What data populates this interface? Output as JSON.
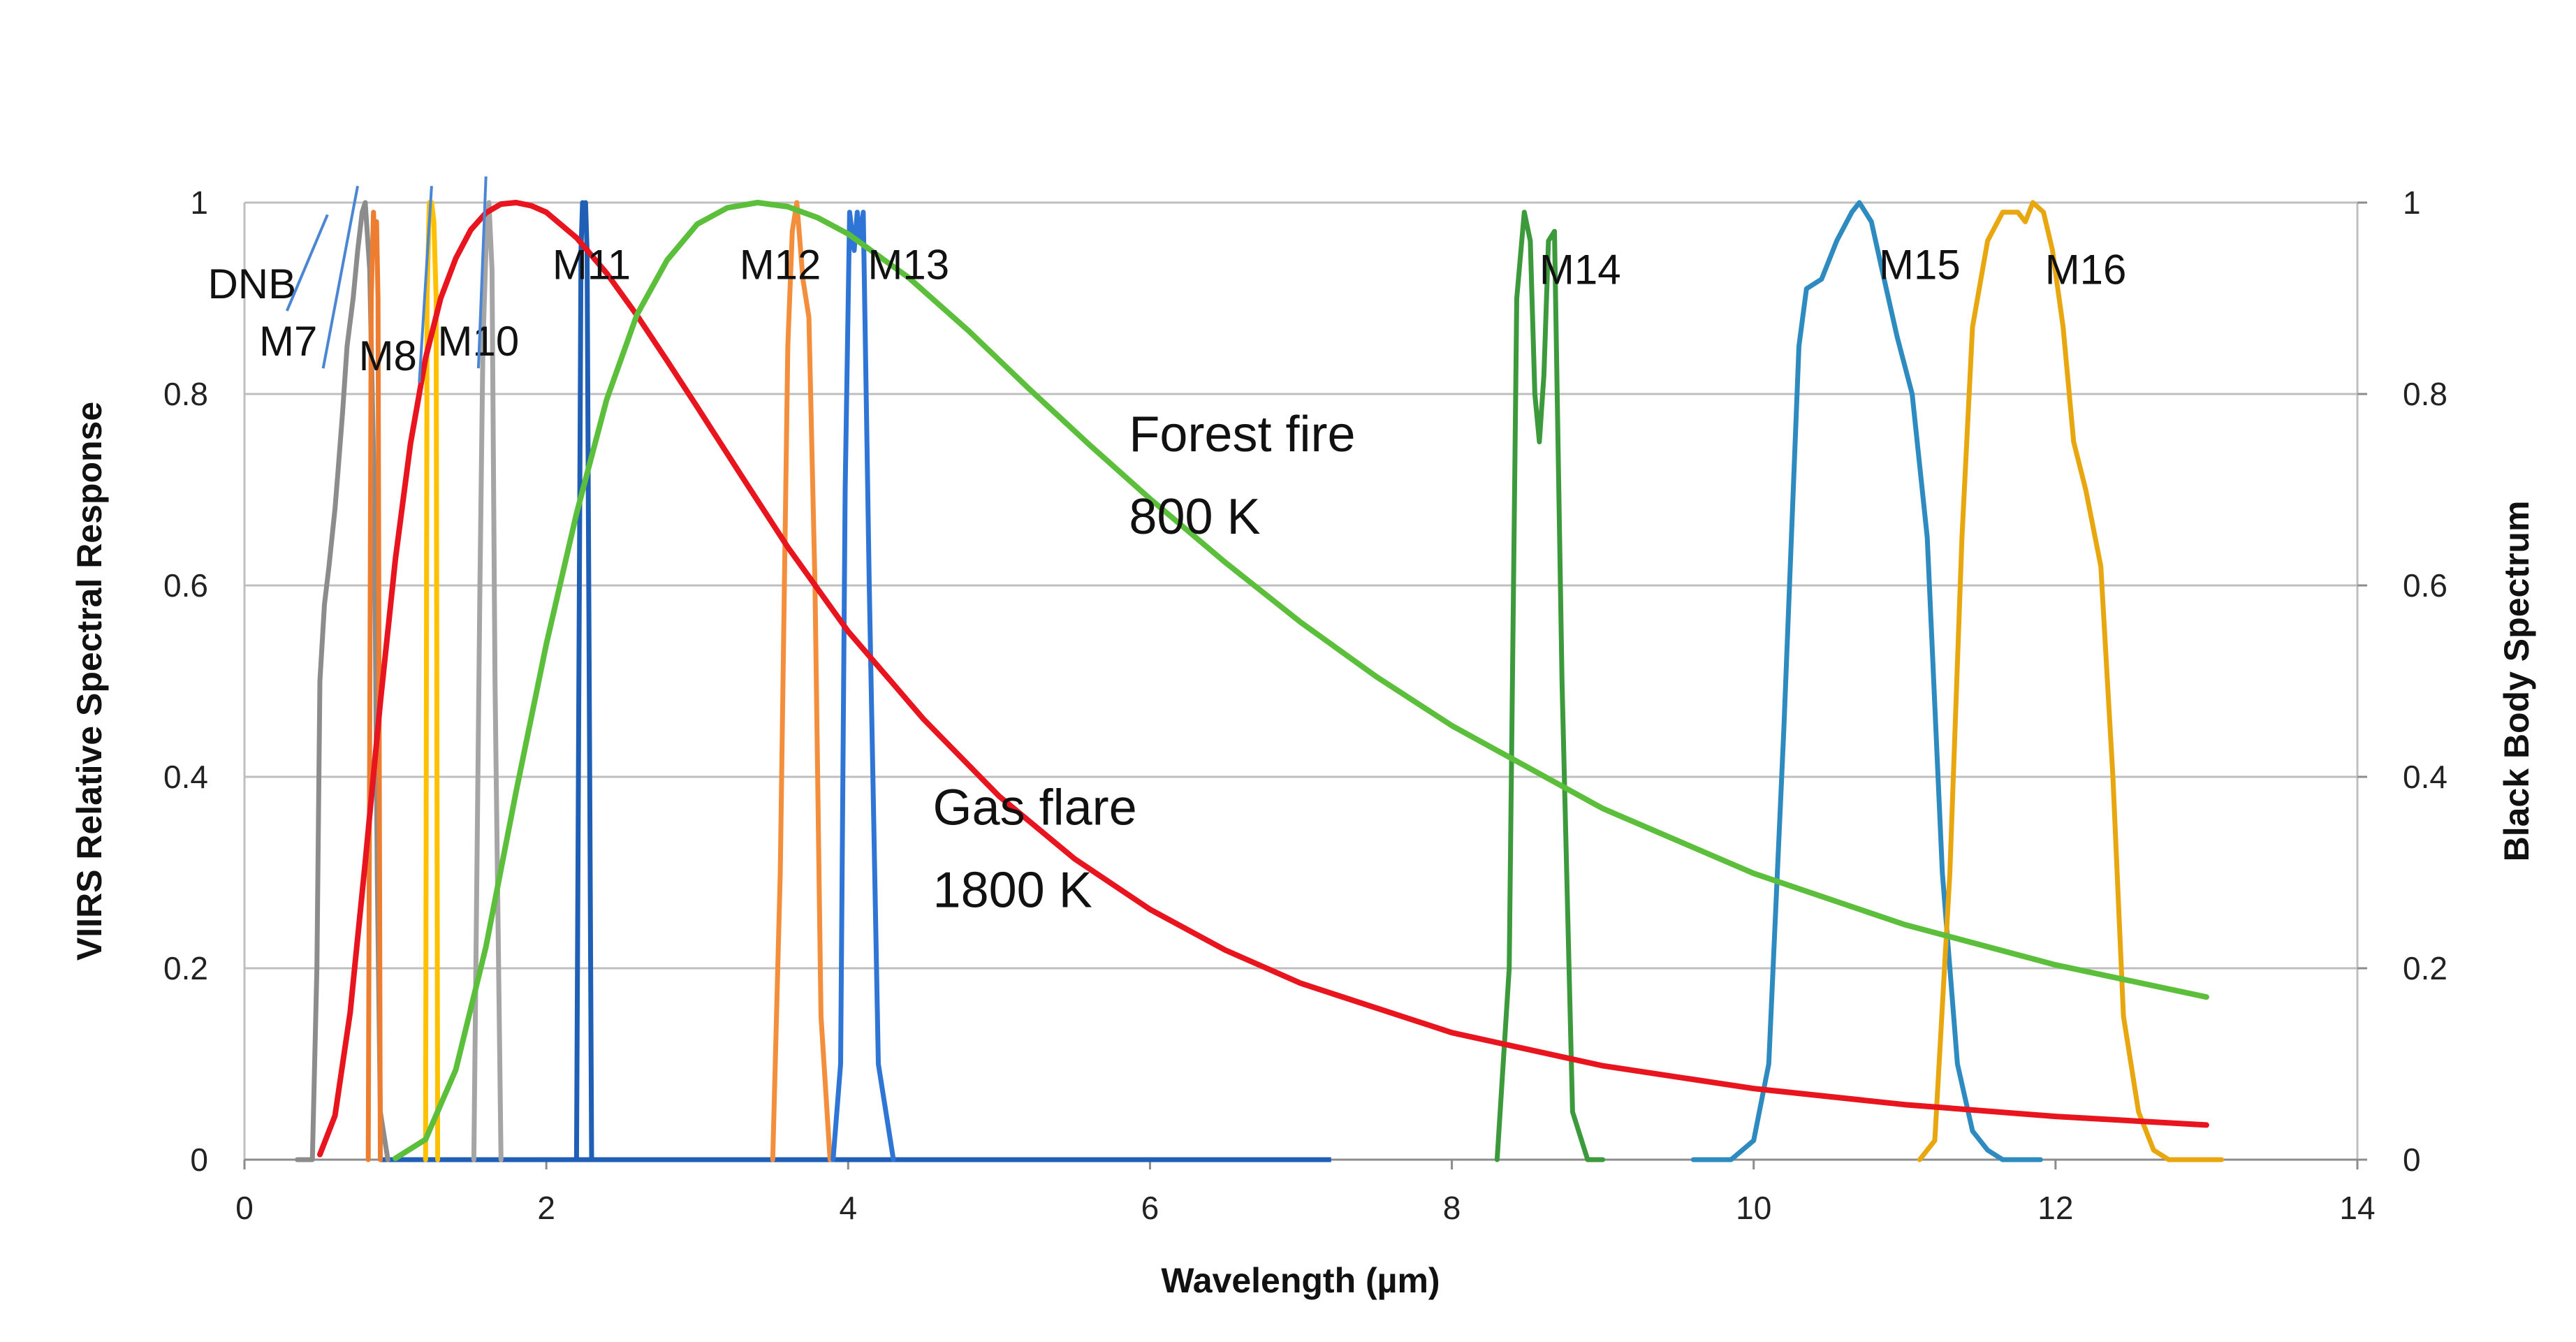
{
  "chart_data": {
    "type": "line",
    "title": "",
    "xlabel": "Wavelength (µm)",
    "ylabel": "VIIRS Relative Spectral Response",
    "y2label": "Black Body Spectrum",
    "xlim": [
      0,
      14
    ],
    "ylim": [
      0,
      1
    ],
    "y2lim": [
      0,
      1
    ],
    "x_ticks": [
      "0",
      "2",
      "4",
      "6",
      "8",
      "10",
      "12",
      "14"
    ],
    "y_ticks": [
      "0",
      "0.2",
      "0.4",
      "0.6",
      "0.8",
      "1"
    ],
    "y2_ticks": [
      "0",
      "0.2",
      "0.4",
      "0.6",
      "0.8",
      "1"
    ],
    "grid": true,
    "series": [
      {
        "name": "DNB",
        "color": "#8c8c8c",
        "x": [
          0.35,
          0.45,
          0.48,
          0.5,
          0.53,
          0.56,
          0.58,
          0.6,
          0.62,
          0.65,
          0.68,
          0.72,
          0.75,
          0.78,
          0.8,
          0.83,
          0.86,
          0.88,
          0.9,
          0.95
        ],
        "y": [
          0,
          0,
          0.2,
          0.5,
          0.58,
          0.62,
          0.65,
          0.68,
          0.72,
          0.78,
          0.85,
          0.9,
          0.95,
          0.99,
          1,
          0.93,
          0.7,
          0.3,
          0.05,
          0
        ]
      },
      {
        "name": "M7",
        "color": "#ed7d31",
        "x": [
          0.82,
          0.84,
          0.855,
          0.865,
          0.875,
          0.885,
          0.9
        ],
        "y": [
          0,
          0.9,
          0.99,
          0.95,
          0.98,
          0.9,
          0
        ]
      },
      {
        "name": "M8",
        "color": "#ffc000",
        "x": [
          1.2,
          1.21,
          1.225,
          1.24,
          1.255,
          1.27,
          1.28
        ],
        "y": [
          0,
          0.9,
          1,
          1,
          0.98,
          0.9,
          0
        ]
      },
      {
        "name": "M10",
        "color": "#a5a5a5",
        "x": [
          1.52,
          1.56,
          1.58,
          1.6,
          1.62,
          1.64,
          1.66,
          1.7
        ],
        "y": [
          0,
          0.6,
          0.85,
          0.95,
          1,
          0.93,
          0.5,
          0
        ]
      },
      {
        "name": "M11",
        "color": "#1f5fb5",
        "x": [
          2.2,
          2.23,
          2.24,
          2.25,
          2.26,
          2.27,
          2.3
        ],
        "y": [
          0,
          0.95,
          1,
          0.98,
          1,
          0.95,
          0
        ]
      },
      {
        "name": "M12",
        "color": "#f28e3c",
        "x": [
          3.5,
          3.55,
          3.6,
          3.63,
          3.66,
          3.7,
          3.74,
          3.78,
          3.82,
          3.88
        ],
        "y": [
          0,
          0.3,
          0.85,
          0.97,
          1,
          0.92,
          0.88,
          0.6,
          0.15,
          0
        ]
      },
      {
        "name": "M13",
        "color": "#2e75d6",
        "x": [
          3.9,
          3.95,
          3.98,
          4.01,
          4.04,
          4.06,
          4.08,
          4.1,
          4.14,
          4.2,
          4.3
        ],
        "y": [
          0,
          0.1,
          0.7,
          0.99,
          0.95,
          0.99,
          0.96,
          0.99,
          0.6,
          0.1,
          0
        ]
      },
      {
        "name": "M14",
        "color": "#3c9a3c",
        "x": [
          8.3,
          8.38,
          8.43,
          8.48,
          8.52,
          8.55,
          8.58,
          8.61,
          8.64,
          8.68,
          8.73,
          8.8,
          8.9,
          9.0
        ],
        "y": [
          0,
          0.2,
          0.9,
          0.99,
          0.96,
          0.8,
          0.75,
          0.82,
          0.96,
          0.97,
          0.5,
          0.05,
          0,
          0
        ]
      },
      {
        "name": "M15",
        "color": "#2e8bc0",
        "x": [
          9.6,
          9.85,
          10.0,
          10.1,
          10.2,
          10.3,
          10.35,
          10.45,
          10.55,
          10.65,
          10.7,
          10.78,
          10.85,
          10.95,
          11.05,
          11.15,
          11.25,
          11.35,
          11.45,
          11.55,
          11.65,
          11.8,
          11.9
        ],
        "y": [
          0,
          0,
          0.02,
          0.1,
          0.45,
          0.85,
          0.91,
          0.92,
          0.96,
          0.99,
          1,
          0.98,
          0.93,
          0.86,
          0.8,
          0.65,
          0.3,
          0.1,
          0.03,
          0.01,
          0,
          0,
          0
        ]
      },
      {
        "name": "M16",
        "color": "#e8a60f",
        "x": [
          11.1,
          11.2,
          11.3,
          11.38,
          11.45,
          11.55,
          11.65,
          11.75,
          11.8,
          11.85,
          11.92,
          11.98,
          12.05,
          12.12,
          12.2,
          12.3,
          12.38,
          12.45,
          12.55,
          12.65,
          12.75,
          12.9,
          13.1
        ],
        "y": [
          0,
          0.02,
          0.3,
          0.65,
          0.87,
          0.96,
          0.99,
          0.99,
          0.98,
          1,
          0.99,
          0.95,
          0.87,
          0.75,
          0.7,
          0.62,
          0.4,
          0.15,
          0.05,
          0.01,
          0,
          0,
          0
        ]
      },
      {
        "name": "Gas flare 1800 K",
        "color": "#e8141e",
        "x": [
          0.5,
          0.6,
          0.7,
          0.8,
          0.9,
          1.0,
          1.1,
          1.2,
          1.3,
          1.4,
          1.5,
          1.6,
          1.7,
          1.8,
          1.9,
          2.0,
          2.2,
          2.4,
          2.6,
          2.8,
          3.0,
          3.3,
          3.6,
          4.0,
          4.5,
          5.0,
          5.5,
          6.0,
          6.5,
          7.0,
          8.0,
          9.0,
          10.0,
          11.0,
          12.0,
          13.0
        ],
        "y": [
          0.0054,
          0.0459,
          0.1535,
          0.3107,
          0.4775,
          0.6275,
          0.7482,
          0.8375,
          0.9,
          0.9417,
          0.9716,
          0.9893,
          0.9985,
          1.0,
          0.9968,
          0.9899,
          0.9633,
          0.9261,
          0.8823,
          0.8349,
          0.7864,
          0.7129,
          0.6399,
          0.5519,
          0.4602,
          0.3798,
          0.3144,
          0.2615,
          0.2189,
          0.1842,
          0.1327,
          0.0981,
          0.0743,
          0.0575,
          0.0452,
          0.0362
        ]
      },
      {
        "name": "Forest fire 800 K",
        "color": "#5cbf3c",
        "x": [
          1.0,
          1.2,
          1.4,
          1.6,
          1.8,
          2.0,
          2.2,
          2.4,
          2.6,
          2.8,
          3.0,
          3.2,
          3.4,
          3.6,
          3.8,
          4.0,
          4.4,
          4.8,
          5.2,
          5.6,
          6.0,
          6.5,
          7.0,
          7.5,
          8.0,
          9.0,
          10.0,
          11.0,
          12.0,
          13.0
        ],
        "y": [
          0.0014,
          0.0212,
          0.0939,
          0.2223,
          0.3846,
          0.5385,
          0.6752,
          0.7943,
          0.8827,
          0.9398,
          0.9775,
          0.9946,
          1.0,
          0.9957,
          0.9841,
          0.9672,
          0.9217,
          0.8658,
          0.8052,
          0.7468,
          0.6905,
          0.6239,
          0.5613,
          0.5047,
          0.4535,
          0.3669,
          0.2991,
          0.2456,
          0.2035,
          0.1699
        ]
      }
    ],
    "band_labels": [
      {
        "text": "DNB",
        "target": [
          0.55,
          0.98
        ]
      },
      {
        "text": "M7",
        "target": [
          0.75,
          1.01
        ]
      },
      {
        "text": "M8",
        "target": [
          1.24,
          1.01
        ]
      },
      {
        "text": "M10",
        "target": [
          1.6,
          1.02
        ]
      },
      {
        "text": "M11"
      },
      {
        "text": "M12"
      },
      {
        "text": "M13"
      },
      {
        "text": "M14"
      },
      {
        "text": "M15"
      },
      {
        "text": "M16"
      }
    ],
    "annotations": [
      {
        "text": "Forest fire",
        "line2": "800 K",
        "at": [
          6.0,
          0.74
        ]
      },
      {
        "text": "Gas flare",
        "line2": "1800 K",
        "at": [
          4.7,
          0.35
        ]
      }
    ]
  }
}
